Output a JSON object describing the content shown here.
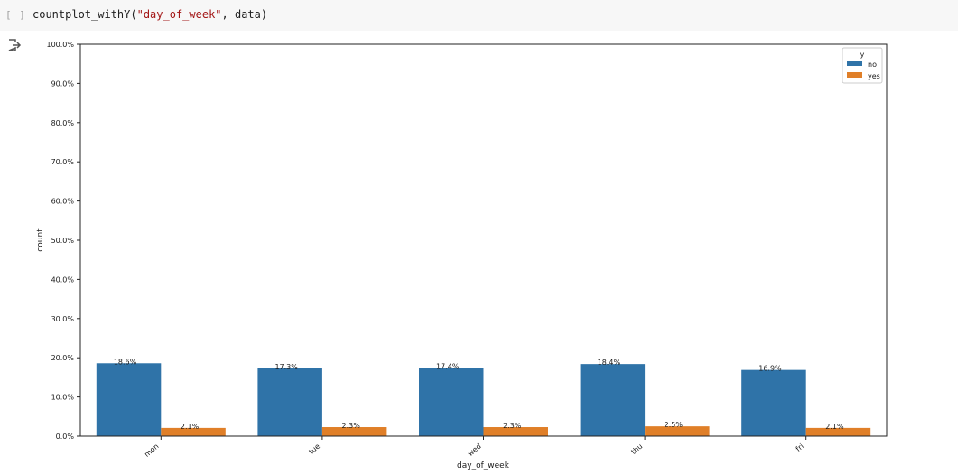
{
  "cell": {
    "run_label": "[ ]",
    "code_prefix": "countplot_withY(",
    "code_string": "\"day_of_week\"",
    "code_suffix": ", data)"
  },
  "output": {
    "icon": "output-redirect-icon"
  },
  "colors": {
    "no": "#2f73a8",
    "yes": "#e07f28",
    "axis": "#222222"
  },
  "chart_data": {
    "type": "bar",
    "xlabel": "day_of_week",
    "ylabel": "count",
    "ylim": [
      0,
      100
    ],
    "yticks": [
      "0.0%",
      "10.0%",
      "20.0%",
      "30.0%",
      "40.0%",
      "50.0%",
      "60.0%",
      "70.0%",
      "80.0%",
      "90.0%",
      "100.0%"
    ],
    "categories": [
      "mon",
      "tue",
      "wed",
      "thu",
      "fri"
    ],
    "legend": {
      "title": "y",
      "position": "top-right"
    },
    "series": [
      {
        "name": "no",
        "values": [
          18.6,
          17.3,
          17.4,
          18.4,
          16.9
        ],
        "labels": [
          "18.6%",
          "17.3%",
          "17.4%",
          "18.4%",
          "16.9%"
        ]
      },
      {
        "name": "yes",
        "values": [
          2.1,
          2.3,
          2.3,
          2.5,
          2.1
        ],
        "labels": [
          "2.1%",
          "2.3%",
          "2.3%",
          "2.5%",
          "2.1%"
        ]
      }
    ],
    "grid": false
  }
}
